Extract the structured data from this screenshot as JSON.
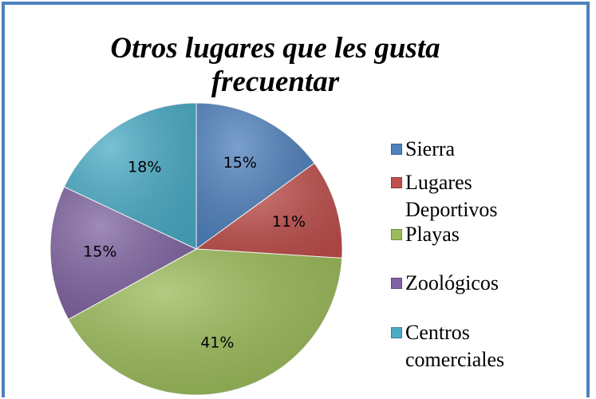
{
  "chart_data": {
    "type": "pie",
    "title": "Otros lugares que les gusta frecuentar",
    "categories": [
      "Sierra",
      "Lugares Deportivos",
      "Playas",
      "Zoológicos",
      "Centros comerciales"
    ],
    "values": [
      15,
      11,
      41,
      15,
      18
    ],
    "value_labels": [
      "15%",
      "11%",
      "41%",
      "15%",
      "18%"
    ],
    "colors": [
      "#4f81bd",
      "#c0504d",
      "#9bbb59",
      "#8064a2",
      "#4bacc6"
    ],
    "legend": "right"
  }
}
